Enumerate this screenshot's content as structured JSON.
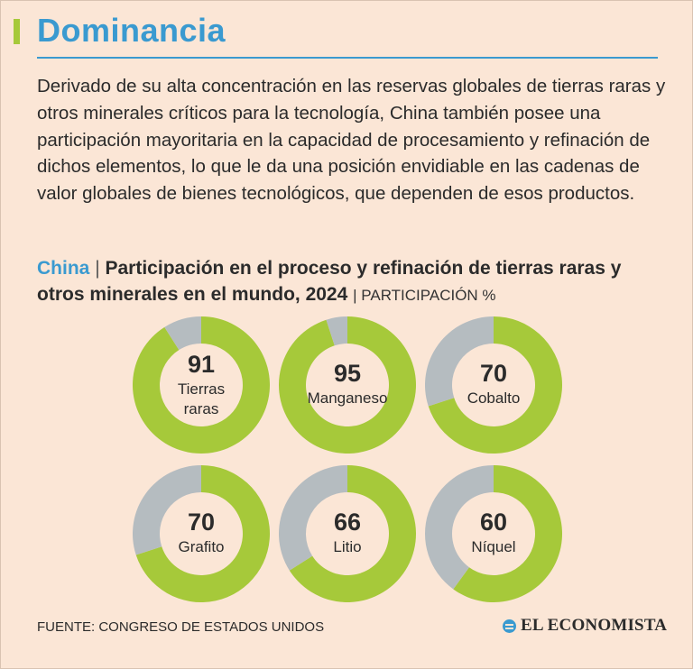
{
  "header": {
    "title": "Dominancia",
    "intro": "Derivado de su alta concentración en las reservas globales de tierras raras y otros minerales críticos para la tecnología, China también posee una participación mayoritaria en la capacidad de procesamiento y refinación de dichos elementos, lo que le da una posición envidiable en las cadenas de valor globales de bienes tecnológicos, que dependen de esos productos."
  },
  "subhead": {
    "country": "China",
    "separator": "|",
    "text": "Participación en el proceso y refinación de tierras raras y otros minerales en el mundo, 2024",
    "unit": "| PARTICIPACIÓN %"
  },
  "colors": {
    "share": "#a6c93a",
    "rest": "#b5bcc0",
    "title": "#3a9ad0",
    "background": "#fbe6d6"
  },
  "chart_data": {
    "type": "pie",
    "title": "Participación en el proceso y refinación de tierras raras y otros minerales en el mundo, 2024",
    "unit": "PARTICIPACIÓN %",
    "categories": [
      "Tierras raras",
      "Manganeso",
      "Cobalto",
      "Grafito",
      "Litio",
      "Níquel"
    ],
    "values": [
      91,
      95,
      70,
      70,
      66,
      60
    ],
    "max": 100
  },
  "footer": {
    "source": "FUENTE: CONGRESO DE ESTADOS UNIDOS",
    "brand": "EL ECONOMISTA",
    "brand_icon": "el-economista-logo-icon"
  }
}
